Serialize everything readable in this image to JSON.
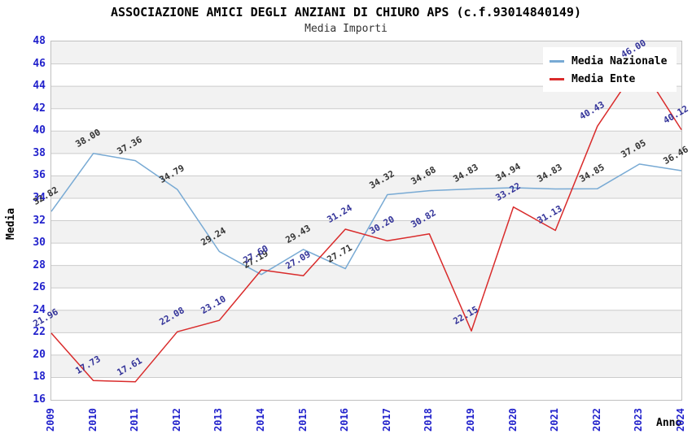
{
  "title": "ASSOCIAZIONE AMICI DEGLI ANZIANI DI CHIURO APS (c.f.93014840149)",
  "subtitle": "Media Importi",
  "chart_data": {
    "type": "line",
    "title": "ASSOCIAZIONE AMICI DEGLI ANZIANI DI CHIURO APS (c.f.93014840149)",
    "subtitle": "Media Importi",
    "xlabel": "Anno",
    "ylabel": "Media",
    "x": [
      "2009",
      "2010",
      "2011",
      "2012",
      "2013",
      "2014",
      "2015",
      "2016",
      "2017",
      "2018",
      "2019",
      "2020",
      "2021",
      "2022",
      "2023",
      "2024"
    ],
    "ylim": [
      16,
      48
    ],
    "ytick_step": 2,
    "grid": "horizontal",
    "background_bands": "alternating gray/white every 2 units, gray topmost (46-48)",
    "legend_position": "top-right-inside",
    "series": [
      {
        "name": "Media Nazionale",
        "color": "#78aad4",
        "label_color": "#333333",
        "values": [
          32.82,
          38.0,
          37.36,
          34.79,
          29.24,
          27.19,
          29.43,
          27.71,
          34.32,
          34.68,
          34.83,
          34.94,
          34.83,
          34.85,
          37.05,
          36.46
        ]
      },
      {
        "name": "Media Ente",
        "color": "#d92b2b",
        "label_color": "#333399",
        "values": [
          21.96,
          17.73,
          17.61,
          22.08,
          23.1,
          27.6,
          27.09,
          31.24,
          30.2,
          30.82,
          22.15,
          33.22,
          31.13,
          40.43,
          46.0,
          40.12
        ]
      }
    ]
  },
  "colors": {
    "tick_label": "#2222cc",
    "grid_line": "#cccccc",
    "plot_border": "#c0c0c0",
    "band_gray": "#f2f2f2",
    "band_white": "#ffffff",
    "legend_background": "#ffffff"
  }
}
